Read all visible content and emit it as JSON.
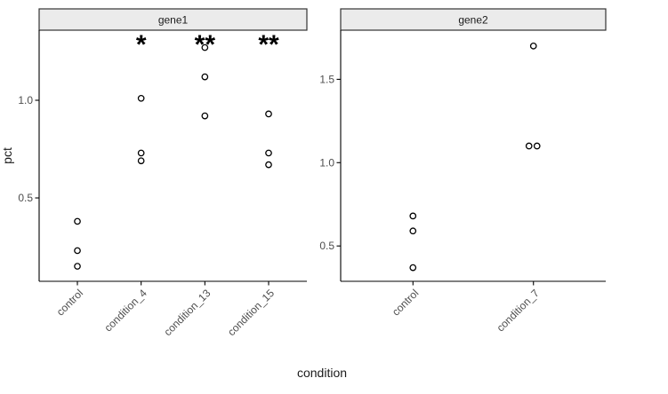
{
  "figure": {
    "xlab": "condition",
    "ylab": "pct",
    "background": "#ffffff",
    "strip_fill": "#ebebeb",
    "strip_border": "#333333",
    "axis_color": "#000000",
    "tick_text_color": "#4d4d4d",
    "point_color": "#000000"
  },
  "chart_data": [
    {
      "type": "scatter",
      "facet": "gene1",
      "xlabel": "condition",
      "ylabel": "pct",
      "categories": [
        "control",
        "condition_4",
        "condition_13",
        "condition_15"
      ],
      "yticks": [
        0.5,
        1.0
      ],
      "ylim": [
        0.073,
        1.359
      ],
      "grid": false,
      "points": [
        {
          "category": "control",
          "y": 0.38
        },
        {
          "category": "control",
          "y": 0.23
        },
        {
          "category": "control",
          "y": 0.15
        },
        {
          "category": "condition_4",
          "y": 1.01
        },
        {
          "category": "condition_4",
          "y": 0.73
        },
        {
          "category": "condition_4",
          "y": 0.69
        },
        {
          "category": "condition_13",
          "y": 1.27
        },
        {
          "category": "condition_13",
          "y": 1.12
        },
        {
          "category": "condition_13",
          "y": 0.92
        },
        {
          "category": "condition_15",
          "y": 0.93
        },
        {
          "category": "condition_15",
          "y": 0.73
        },
        {
          "category": "condition_15",
          "y": 0.67
        }
      ],
      "annotations": [
        {
          "category": "condition_4",
          "label": "*"
        },
        {
          "category": "condition_13",
          "label": "**"
        },
        {
          "category": "condition_15",
          "label": "**"
        }
      ]
    },
    {
      "type": "scatter",
      "facet": "gene2",
      "xlabel": "condition",
      "ylabel": "pct",
      "categories": [
        "control",
        "condition_7"
      ],
      "yticks": [
        0.5,
        1.0,
        1.5
      ],
      "ylim": [
        0.288,
        1.795
      ],
      "grid": false,
      "points": [
        {
          "category": "control",
          "y": 0.68
        },
        {
          "category": "control",
          "y": 0.59
        },
        {
          "category": "control",
          "y": 0.37
        },
        {
          "category": "condition_7",
          "y": 1.7
        },
        {
          "category": "condition_7",
          "y": 1.1,
          "xoff": -5
        },
        {
          "category": "condition_7",
          "y": 1.1,
          "xoff": 4
        }
      ],
      "annotations": []
    }
  ]
}
